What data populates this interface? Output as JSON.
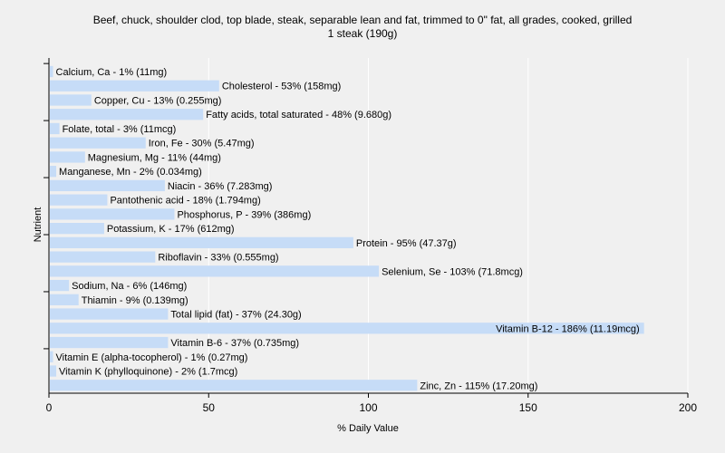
{
  "chart_data": {
    "type": "bar",
    "orientation": "horizontal",
    "title": "Beef, chuck, shoulder clod, top blade, steak, separable lean and fat, trimmed to 0\" fat, all grades, cooked, grilled",
    "subtitle": "1 steak (190g)",
    "xlabel": "% Daily Value",
    "ylabel": "Nutrient",
    "xlim": [
      0,
      200
    ],
    "xticks": [
      0,
      50,
      100,
      150,
      200
    ],
    "grid": true,
    "bar_color": "#c6dcf7",
    "categories": [
      "Calcium, Ca",
      "Cholesterol",
      "Copper, Cu",
      "Fatty acids, total saturated",
      "Folate, total",
      "Iron, Fe",
      "Magnesium, Mg",
      "Manganese, Mn",
      "Niacin",
      "Pantothenic acid",
      "Phosphorus, P",
      "Potassium, K",
      "Protein",
      "Riboflavin",
      "Selenium, Se",
      "Sodium, Na",
      "Thiamin",
      "Total lipid (fat)",
      "Vitamin B-12",
      "Vitamin B-6",
      "Vitamin E (alpha-tocopherol)",
      "Vitamin K (phylloquinone)",
      "Zinc, Zn"
    ],
    "values": [
      1,
      53,
      13,
      48,
      3,
      30,
      11,
      2,
      36,
      18,
      39,
      17,
      95,
      33,
      103,
      6,
      9,
      37,
      186,
      37,
      1,
      2,
      115
    ],
    "labels": [
      "Calcium, Ca - 1% (11mg)",
      "Cholesterol - 53% (158mg)",
      "Copper, Cu - 13% (0.255mg)",
      "Fatty acids, total saturated - 48% (9.680g)",
      "Folate, total - 3% (11mcg)",
      "Iron, Fe - 30% (5.47mg)",
      "Magnesium, Mg - 11% (44mg)",
      "Manganese, Mn - 2% (0.034mg)",
      "Niacin - 36% (7.283mg)",
      "Pantothenic acid - 18% (1.794mg)",
      "Phosphorus, P - 39% (386mg)",
      "Potassium, K - 17% (612mg)",
      "Protein - 95% (47.37g)",
      "Riboflavin - 33% (0.555mg)",
      "Selenium, Se - 103% (71.8mcg)",
      "Sodium, Na - 6% (146mg)",
      "Thiamin - 9% (0.139mg)",
      "Total lipid (fat) - 37% (24.30g)",
      "Vitamin B-12 - 186% (11.19mcg)",
      "Vitamin B-6 - 37% (0.735mg)",
      "Vitamin E (alpha-tocopherol) - 1% (0.27mg)",
      "Vitamin K (phylloquinone) - 2% (1.7mcg)",
      "Zinc, Zn - 115% (17.20mg)"
    ]
  }
}
